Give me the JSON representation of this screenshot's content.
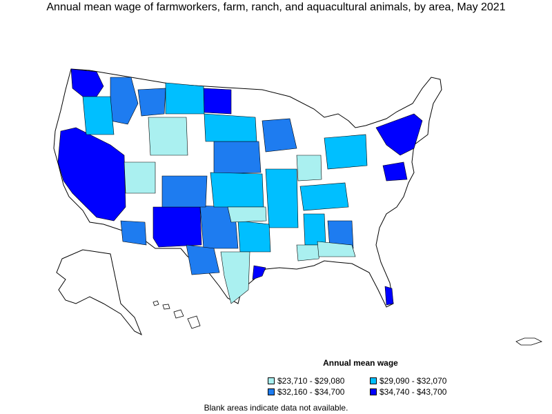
{
  "title": "Annual mean wage of farmworkers, farm, ranch, and aquacultural animals, by area, May 2021",
  "legend": {
    "title": "Annual mean wage",
    "items": [
      {
        "label": "$23,710 - $29,080",
        "color": "#aaf0f0"
      },
      {
        "label": "$29,090 - $32,070",
        "color": "#00bfff"
      },
      {
        "label": "$32,160 - $34,700",
        "color": "#1e7cf0"
      },
      {
        "label": "$34,740 - $43,700",
        "color": "#0000ff"
      }
    ]
  },
  "note": "Blank areas indicate data not available."
}
